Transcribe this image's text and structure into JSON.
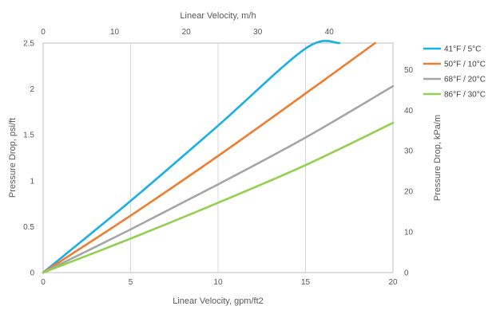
{
  "chart_data": {
    "type": "line",
    "title": "",
    "xlabel_bottom": "Linear Velocity, gpm/ft2",
    "xlabel_top": "Linear Velocity, m/h",
    "ylabel_left": "Pressure Drop, psi/ft",
    "ylabel_right": "Pressure Drop, kPa/m",
    "xlim_bottom": [
      0,
      20
    ],
    "xticks_bottom": [
      "0",
      "5",
      "10",
      "15",
      "20"
    ],
    "xlim_top": [
      0,
      48.9
    ],
    "xticks_top": [
      "0",
      "10",
      "20",
      "30",
      "40"
    ],
    "ylim_left": [
      0,
      2.5
    ],
    "yticks_left": [
      "0",
      "0.5",
      "1",
      "1.5",
      "2",
      "2.5"
    ],
    "ylim_right": [
      0,
      56.55
    ],
    "yticks_right": [
      "0",
      "10",
      "20",
      "30",
      "40",
      "50"
    ],
    "grid": "vertical",
    "legend_position": "right",
    "series": [
      {
        "name": "41°F / 5°C",
        "color": "#1aafe6",
        "x": [
          0,
          5,
          10,
          15,
          16.94
        ],
        "y": [
          0,
          0.78,
          1.6,
          2.44,
          2.5
        ]
      },
      {
        "name": "50°F / 10°C",
        "color": "#ed7d31",
        "x": [
          0,
          5,
          10,
          15,
          18.98
        ],
        "y": [
          0,
          0.62,
          1.27,
          1.95,
          2.5
        ]
      },
      {
        "name": "68°F / 20°C",
        "color": "#a5a5a5",
        "x": [
          0,
          5,
          10,
          15,
          20
        ],
        "y": [
          0,
          0.47,
          0.96,
          1.47,
          2.03
        ]
      },
      {
        "name": "86°F / 30°C",
        "color": "#92d050",
        "x": [
          0,
          5,
          10,
          15,
          20
        ],
        "y": [
          0,
          0.37,
          0.76,
          1.17,
          1.63
        ]
      }
    ]
  }
}
